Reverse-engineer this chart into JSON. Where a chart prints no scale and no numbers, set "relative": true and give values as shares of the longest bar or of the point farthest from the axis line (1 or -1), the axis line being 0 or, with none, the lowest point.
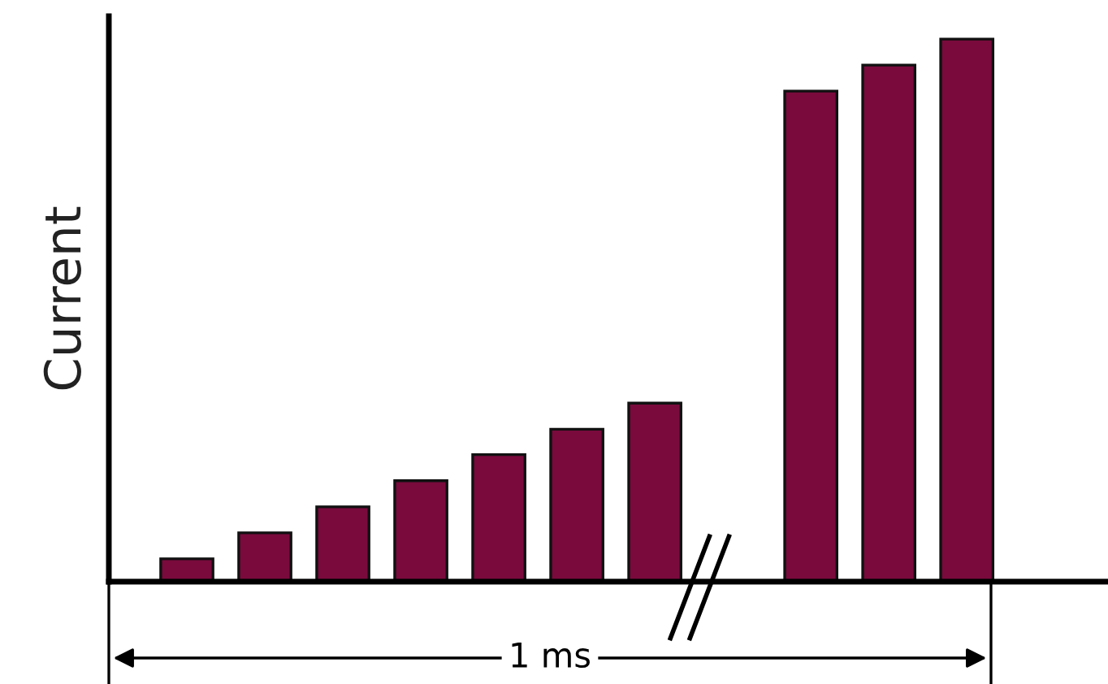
{
  "chart_data": {
    "type": "bar",
    "relative": true,
    "ylabel": "Current",
    "categories": [
      null,
      null,
      null,
      null,
      null,
      null,
      null,
      null,
      null,
      null
    ],
    "series": [
      {
        "color": "#7a0a3c",
        "values": [
          0.042,
          0.09,
          0.138,
          0.186,
          0.234,
          0.281,
          0.329,
          0.904,
          0.952,
          1
        ]
      }
    ],
    "annotations": [
      "1 ms"
    ],
    "grid": false,
    "legend": false
  }
}
